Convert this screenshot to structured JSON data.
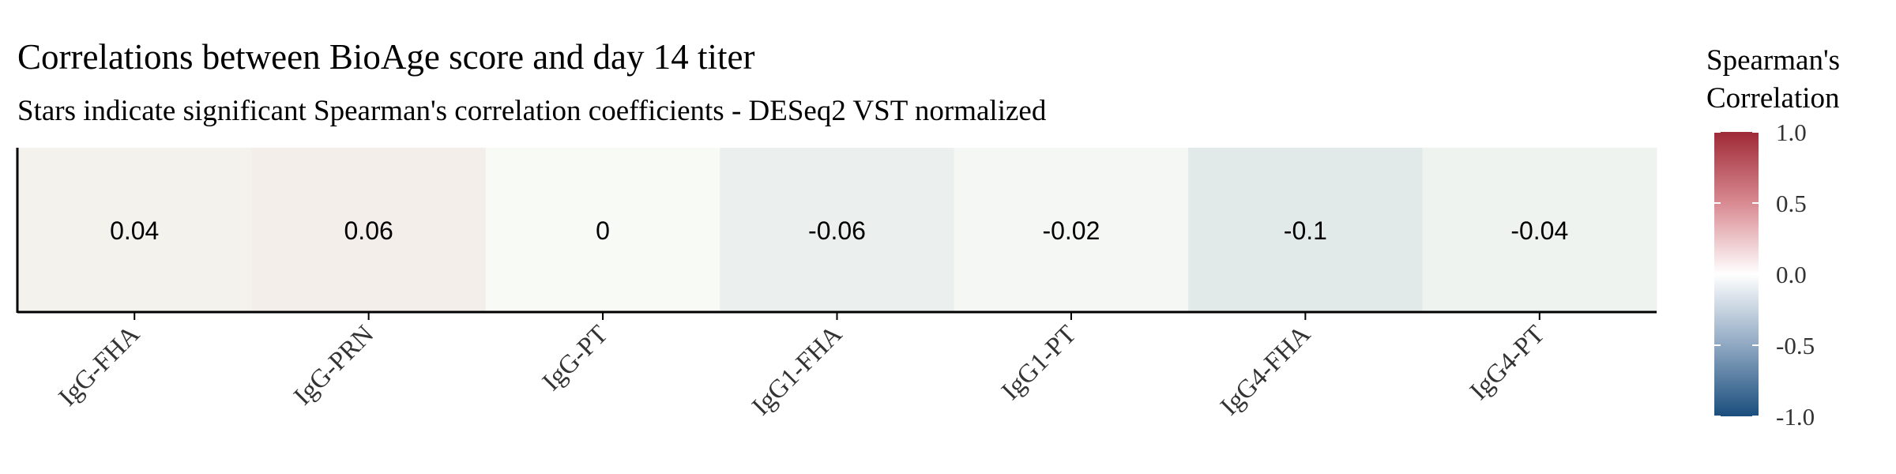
{
  "chart_data": {
    "type": "heatmap",
    "title": "Correlations between BioAge score and day 14 titer",
    "subtitle": "Stars indicate significant Spearman's correlation coefficients - DESeq2 VST normalized",
    "categories": [
      "IgG-FHA",
      "IgG-PRN",
      "IgG-PT",
      "IgG1-FHA",
      "IgG1-PT",
      "IgG4-FHA",
      "IgG4-PT"
    ],
    "values": [
      0.04,
      0.06,
      0,
      -0.06,
      -0.02,
      -0.1,
      -0.04
    ],
    "value_labels": [
      "0.04",
      "0.06",
      "0",
      "-0.06",
      "-0.02",
      "-0.1",
      "-0.04"
    ],
    "xlabel": "",
    "ylabel": "",
    "legend": {
      "title_line1": "Spearman's",
      "title_line2": "Correlation",
      "position": "right",
      "range": [
        -1.0,
        1.0
      ],
      "ticks": [
        1.0,
        0.5,
        0.0,
        -0.5,
        -1.0
      ],
      "tick_labels": [
        "1.0",
        "0.5",
        "0.0",
        "-0.5",
        "-1.0"
      ]
    },
    "colors": {
      "high": "#9e2a36",
      "mid": "#ffffff",
      "low": "#1a4e7d"
    },
    "grid": false
  }
}
